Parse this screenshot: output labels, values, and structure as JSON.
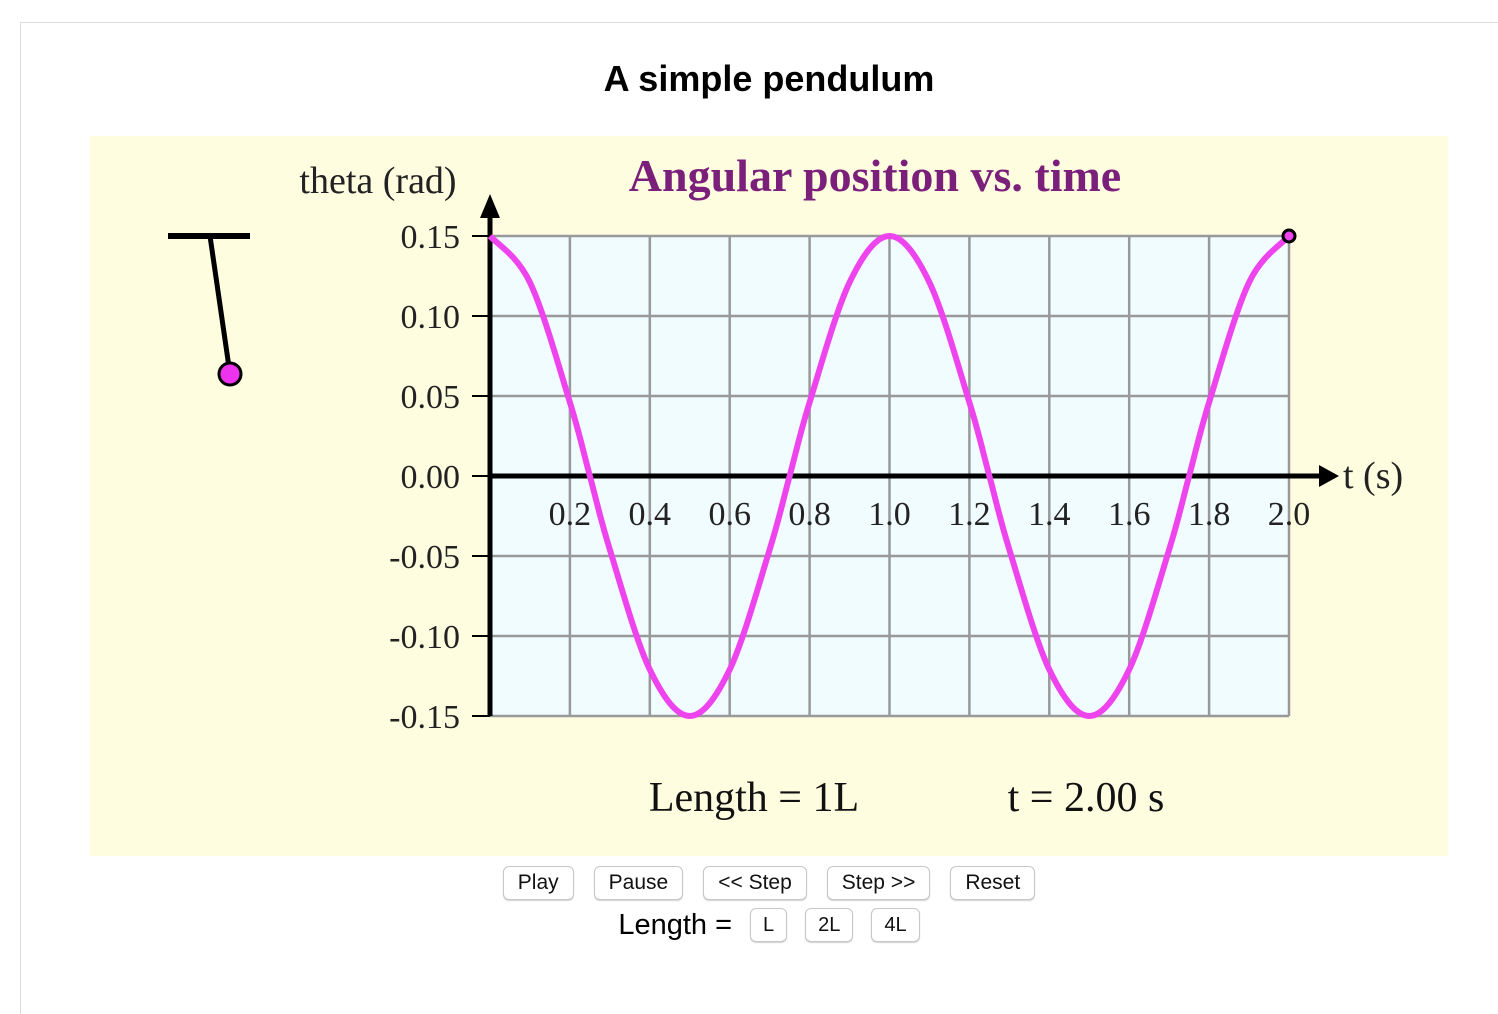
{
  "page": {
    "title": "A simple pendulum"
  },
  "simulation": {
    "length_readout": "Length = 1L",
    "time_readout": "t = 2.00 s",
    "pendulum_color": "#ee33ee",
    "background_color": "#fffde0"
  },
  "controls": {
    "play_label": "Play",
    "pause_label": "Pause",
    "step_back_label": "<< Step",
    "step_forward_label": "Step >>",
    "reset_label": "Reset",
    "length_label": "Length =",
    "length_options": [
      "L",
      "2L",
      "4L"
    ]
  },
  "chart_data": {
    "type": "line",
    "title": "Angular position vs. time",
    "xlabel": "t (s)",
    "ylabel": "theta (rad)",
    "xlim": [
      0,
      2.0
    ],
    "ylim": [
      -0.15,
      0.15
    ],
    "x_ticks": [
      "0.2",
      "0.4",
      "0.6",
      "0.8",
      "1.0",
      "1.2",
      "1.4",
      "1.6",
      "1.8",
      "2.0"
    ],
    "y_ticks": [
      "0.15",
      "0.10",
      "0.05",
      "0.00",
      "-0.05",
      "-0.10",
      "-0.15"
    ],
    "grid": true,
    "plot_background": "#f0fcff",
    "grid_color": "#999999",
    "title_color": "#7a1f7a",
    "series": [
      {
        "color": "#ee44ee",
        "x": [
          0.0,
          0.1,
          0.2,
          0.25,
          0.3,
          0.4,
          0.5,
          0.6,
          0.7,
          0.75,
          0.8,
          0.9,
          1.0,
          1.1,
          1.2,
          1.25,
          1.3,
          1.4,
          1.5,
          1.6,
          1.7,
          1.75,
          1.8,
          1.9,
          2.0
        ],
        "y": [
          0.15,
          0.121,
          0.046,
          0.0,
          -0.046,
          -0.121,
          -0.15,
          -0.121,
          -0.046,
          0.0,
          0.046,
          0.121,
          0.15,
          0.121,
          0.046,
          0.0,
          -0.046,
          -0.121,
          -0.15,
          -0.121,
          -0.046,
          0.0,
          0.046,
          0.121,
          0.15
        ]
      }
    ],
    "current_point": {
      "x": 2.0,
      "y": 0.15
    }
  }
}
